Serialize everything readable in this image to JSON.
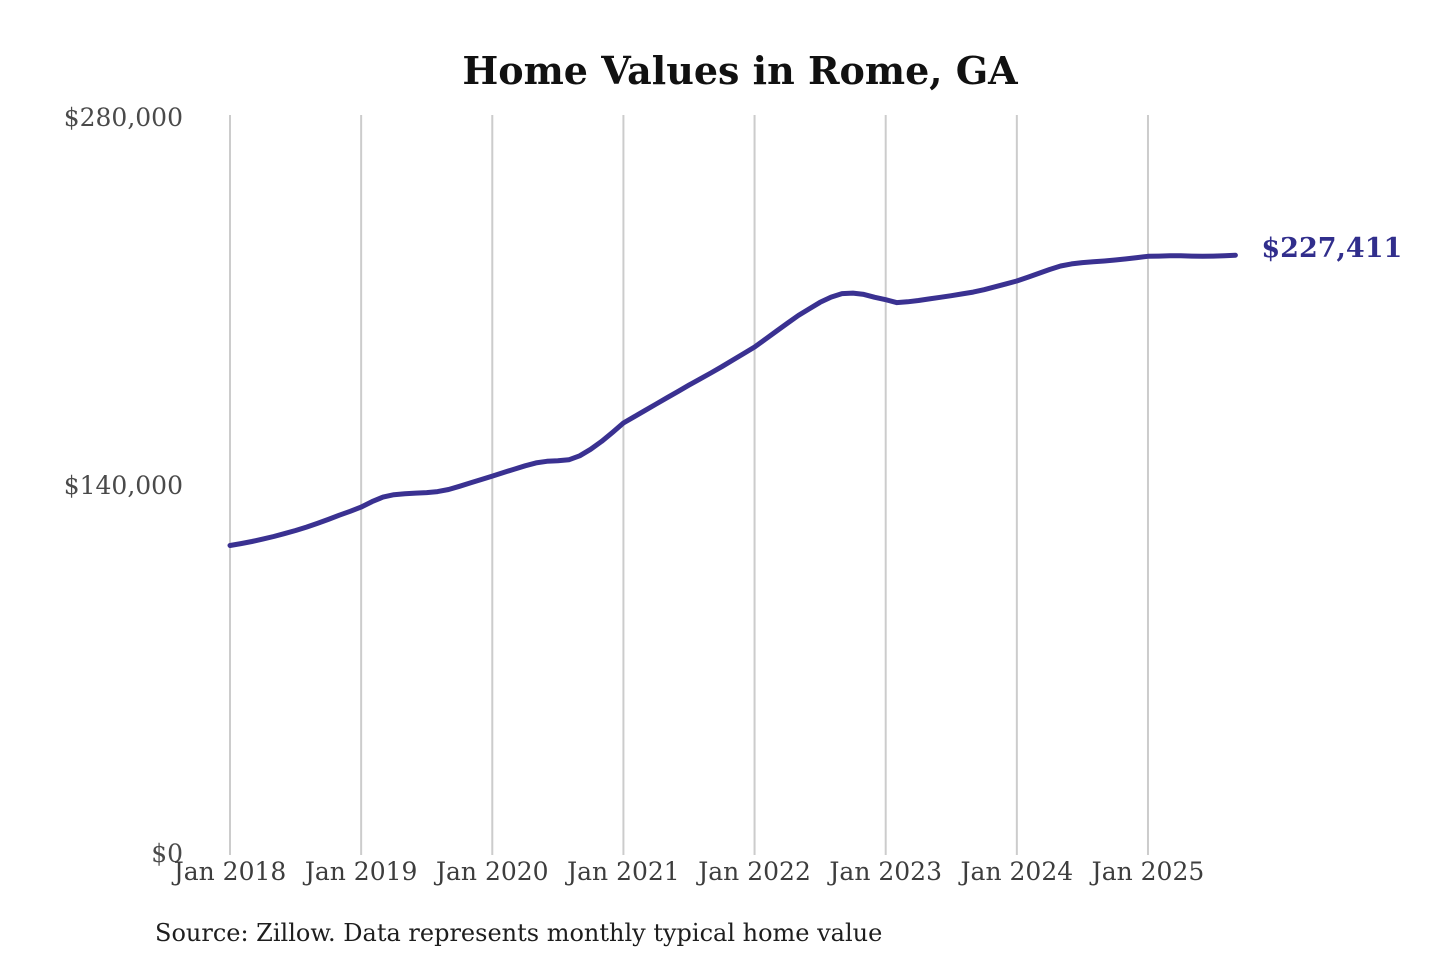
{
  "page": {
    "background": "#ffffff"
  },
  "colors": {
    "line": "#3a3191",
    "end_label": "#312e8c",
    "grid": "#cccccc",
    "title": "#111111",
    "y_axis_label": "#4a4a4a",
    "x_axis_label": "#3d3d3d",
    "source": "#1e1e1e"
  },
  "chart_data": {
    "type": "line",
    "title": "Home Values in Rome, GA",
    "source_note": "Source: Zillow. Data represents monthly typical home value",
    "series_name": "Monthly typical home value",
    "legend": "none",
    "grid": "vertical-only",
    "ylim": [
      0,
      280000
    ],
    "y_ticks": [
      {
        "value": 0,
        "label": "$0"
      },
      {
        "value": 140000,
        "label": "$140,000"
      },
      {
        "value": 280000,
        "label": "$280,000"
      }
    ],
    "x_tick_labels": [
      "Jan 2018",
      "Jan 2019",
      "Jan 2020",
      "Jan 2021",
      "Jan 2022",
      "Jan 2023",
      "Jan 2024",
      "Jan 2025"
    ],
    "end_label": "$227,411",
    "final_value": 227411,
    "months": [
      "2018-01",
      "2018-02",
      "2018-03",
      "2018-04",
      "2018-05",
      "2018-06",
      "2018-07",
      "2018-08",
      "2018-09",
      "2018-10",
      "2018-11",
      "2018-12",
      "2019-01",
      "2019-02",
      "2019-03",
      "2019-04",
      "2019-05",
      "2019-06",
      "2019-07",
      "2019-08",
      "2019-09",
      "2019-10",
      "2019-11",
      "2019-12",
      "2020-01",
      "2020-02",
      "2020-03",
      "2020-04",
      "2020-05",
      "2020-06",
      "2020-07",
      "2020-08",
      "2020-09",
      "2020-10",
      "2020-11",
      "2020-12",
      "2021-01",
      "2021-02",
      "2021-03",
      "2021-04",
      "2021-05",
      "2021-06",
      "2021-07",
      "2021-08",
      "2021-09",
      "2021-10",
      "2021-11",
      "2021-12",
      "2022-01",
      "2022-02",
      "2022-03",
      "2022-04",
      "2022-05",
      "2022-06",
      "2022-07",
      "2022-08",
      "2022-09",
      "2022-10",
      "2022-11",
      "2022-12",
      "2023-01",
      "2023-02",
      "2023-03",
      "2023-04",
      "2023-05",
      "2023-06",
      "2023-07",
      "2023-08",
      "2023-09",
      "2023-10",
      "2023-11",
      "2023-12",
      "2024-01",
      "2024-02",
      "2024-03",
      "2024-04",
      "2024-05",
      "2024-06",
      "2024-07",
      "2024-08",
      "2024-09",
      "2024-10",
      "2024-11",
      "2024-12",
      "2025-01",
      "2025-02",
      "2025-03",
      "2025-04",
      "2025-05",
      "2025-06",
      "2025-07",
      "2025-08",
      "2025-09"
    ],
    "values": [
      117000,
      117700,
      118500,
      119400,
      120400,
      121500,
      122700,
      124000,
      125400,
      126900,
      128500,
      130000,
      131600,
      133700,
      135400,
      136300,
      136700,
      136900,
      137100,
      137500,
      138300,
      139500,
      140800,
      142100,
      143400,
      144700,
      146000,
      147300,
      148400,
      149000,
      149200,
      149600,
      151100,
      153600,
      156600,
      160000,
      163600,
      166000,
      168400,
      170800,
      173200,
      175600,
      178000,
      180300,
      182600,
      185000,
      187500,
      190000,
      192500,
      195500,
      198500,
      201500,
      204500,
      207000,
      209500,
      211500,
      212800,
      213000,
      212500,
      211400,
      210500,
      209400,
      209700,
      210200,
      210800,
      211400,
      212000,
      212700,
      213400,
      214300,
      215400,
      216500,
      217600,
      219000,
      220500,
      222000,
      223300,
      224100,
      224600,
      224900,
      225200,
      225600,
      226000,
      226500,
      227000,
      227100,
      227200,
      227200,
      227100,
      227000,
      227100,
      227250,
      227411
    ]
  }
}
